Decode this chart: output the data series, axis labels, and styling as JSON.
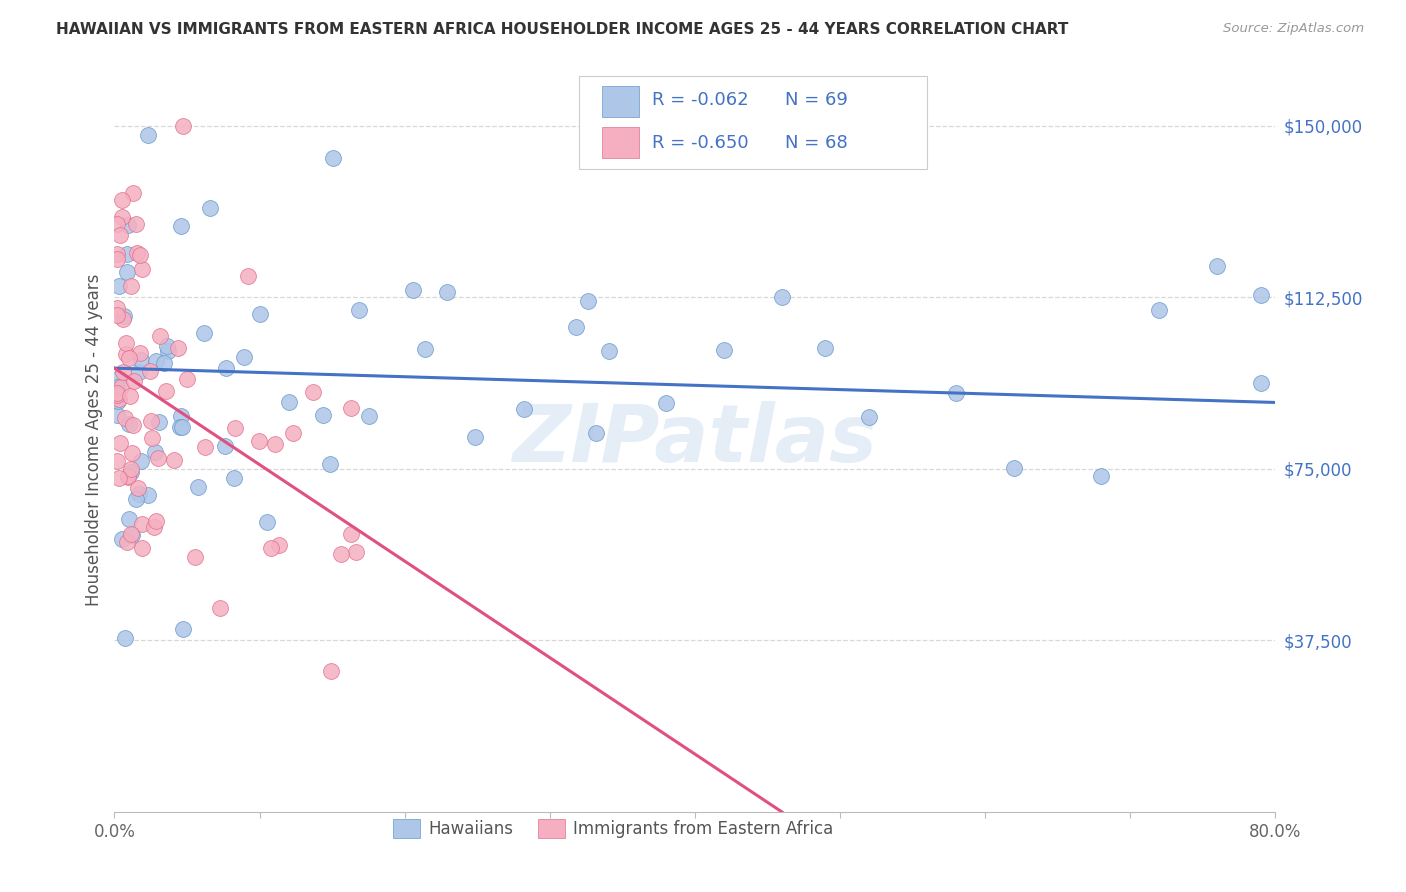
{
  "title": "HAWAIIAN VS IMMIGRANTS FROM EASTERN AFRICA HOUSEHOLDER INCOME AGES 25 - 44 YEARS CORRELATION CHART",
  "source": "Source: ZipAtlas.com",
  "ylabel": "Householder Income Ages 25 - 44 years",
  "xlim": [
    0.0,
    0.8
  ],
  "ylim": [
    0,
    162500
  ],
  "yticks": [
    37500,
    75000,
    112500,
    150000
  ],
  "ytick_labels": [
    "$37,500",
    "$75,000",
    "$112,500",
    "$150,000"
  ],
  "xticks": [
    0.0,
    0.1,
    0.2,
    0.3,
    0.4,
    0.5,
    0.6,
    0.7,
    0.8
  ],
  "xtick_labels": [
    "0.0%",
    "",
    "",
    "",
    "",
    "",
    "",
    "",
    "80.0%"
  ],
  "grid_color": "#d8d8d8",
  "background_color": "#ffffff",
  "watermark": "ZIPatlas",
  "hawaiian_color": "#aec6e8",
  "eastern_africa_color": "#f5afc0",
  "hawaiian_edge_color": "#6699cc",
  "eastern_africa_edge_color": "#e07090",
  "hawaiian_line_color": "#4472c4",
  "eastern_africa_line_color": "#e05080",
  "legend_text_color": "#4472c4",
  "legend_value_color": "#e05000",
  "R_hawaiian": -0.062,
  "N_hawaiian": 69,
  "R_eastern": -0.65,
  "N_eastern": 68,
  "haw_line_x0": 0.0,
  "haw_line_y0": 97000,
  "haw_line_x1": 0.8,
  "haw_line_y1": 89500,
  "ea_line_x0": 0.0,
  "ea_line_y0": 97000,
  "ea_line_x1": 0.46,
  "ea_line_y1": 0
}
